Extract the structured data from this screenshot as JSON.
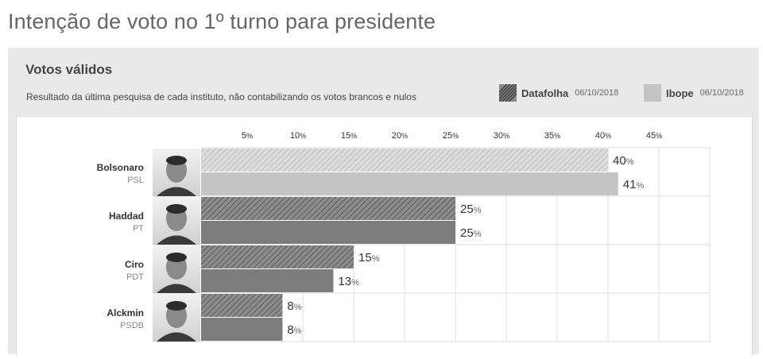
{
  "page": {
    "title": "Intenção de voto no 1º turno para presidente"
  },
  "panel": {
    "subtitle": "Votos válidos",
    "description": "Resultado da última pesquisa de cada instituto, não contabilizando os votos brancos e nulos"
  },
  "legend": [
    {
      "name": "Datafolha",
      "date": "06/10/2018",
      "pattern": "hatched"
    },
    {
      "name": "Ibope",
      "date": "06/10/2018",
      "pattern": "solid"
    }
  ],
  "colors": {
    "hatch_light": "#dcdcdc",
    "hatch_light_stripe": "#bfbfbf",
    "solid_light": "#c4c4c4",
    "hatch_dark": "#8c8c8c",
    "hatch_dark_stripe": "#5e5e5e",
    "solid_dark": "#7c7c7c",
    "grid": "#dddddd"
  },
  "chart_data": {
    "type": "bar",
    "orientation": "horizontal",
    "title": "Votos válidos",
    "categories": [
      "Bolsonaro",
      "Haddad",
      "Ciro",
      "Alckmin"
    ],
    "parties": [
      "PSL",
      "PT",
      "PDT",
      "PSDB"
    ],
    "series": [
      {
        "name": "Datafolha",
        "date": "06/10/2018",
        "values": [
          40,
          25,
          15,
          8
        ]
      },
      {
        "name": "Ibope",
        "date": "06/10/2018",
        "values": [
          41,
          25,
          13,
          8
        ]
      }
    ],
    "xlim": [
      0,
      50
    ],
    "xticks": [
      5,
      10,
      15,
      20,
      25,
      30,
      35,
      40,
      45
    ],
    "tick_suffix": "%",
    "value_suffix": "%",
    "grid": true
  }
}
